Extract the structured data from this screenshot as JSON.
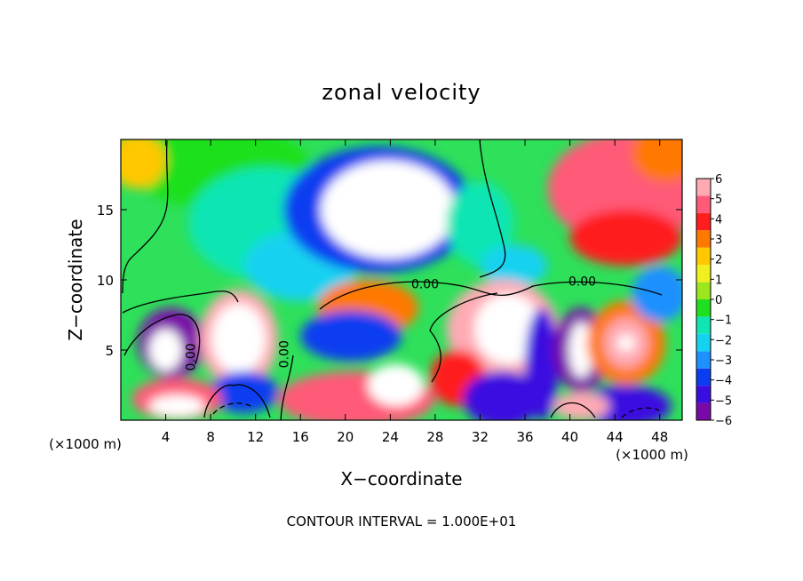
{
  "chart_data": {
    "type": "heatmap",
    "title": "zonal velocity",
    "xlabel": "X−coordinate",
    "ylabel": "Z−coordinate",
    "x_unit_left": "(×1000 m)",
    "x_unit_right": "(×1000 m)",
    "footer": "CONTOUR INTERVAL = 1.000E+01",
    "xlim": [
      0,
      50
    ],
    "ylim": [
      0,
      20
    ],
    "x_ticks": [
      4,
      8,
      12,
      16,
      20,
      24,
      28,
      32,
      36,
      40,
      44,
      48
    ],
    "y_ticks": [
      5,
      10,
      15
    ],
    "colorbar": {
      "range": [
        -6,
        6
      ],
      "ticks": [
        6,
        5,
        4,
        3,
        2,
        1,
        0,
        -1,
        -2,
        -3,
        -4,
        -5,
        -6
      ],
      "tick_labels": [
        "6",
        "5",
        "4",
        "3",
        "2",
        "1",
        "0",
        "−1",
        "−2",
        "−3",
        "−4",
        "−5",
        "−6"
      ],
      "colors": [
        "#7a0aa8",
        "#3a0ee0",
        "#0a3cf0",
        "#1e90ff",
        "#14d2f0",
        "#10e6b4",
        "#1ee01e",
        "#9be61e",
        "#f0f01e",
        "#ffc800",
        "#ff7800",
        "#ff1e1e",
        "#ff5a78",
        "#ffaab4"
      ]
    },
    "contour_labels": [
      {
        "text": "0.00",
        "x": 27.1,
        "z": 9.4
      },
      {
        "text": "0.00",
        "x": 41.1,
        "z": 9.6
      },
      {
        "text": "0.00",
        "x": 6.6,
        "z": 4.5
      },
      {
        "text": "0.00",
        "x": 14.9,
        "z": 4.7
      }
    ],
    "field_blobs": [
      {
        "x": 9,
        "z": 18,
        "rx": 8,
        "rz": 3,
        "value": -0.4
      },
      {
        "x": 13,
        "z": 14,
        "rx": 7,
        "rz": 4,
        "value": -1.6
      },
      {
        "x": 16,
        "z": 11,
        "rx": 5,
        "rz": 2.5,
        "value": -2.5
      },
      {
        "x": 23,
        "z": 15,
        "rx": 8.5,
        "rz": 4.5,
        "value": -4.2
      },
      {
        "x": 23.8,
        "z": 15,
        "rx": 6,
        "rz": 3.5,
        "value": -8
      },
      {
        "x": 32,
        "z": 14,
        "rx": 3,
        "rz": 3,
        "value": -1.4
      },
      {
        "x": 35,
        "z": 11,
        "rx": 3,
        "rz": 1.5,
        "value": -2.2
      },
      {
        "x": 45,
        "z": 16.5,
        "rx": 7,
        "rz": 4,
        "value": 4.6
      },
      {
        "x": 45,
        "z": 13,
        "rx": 5,
        "rz": 2,
        "value": 3.6
      },
      {
        "x": 48.5,
        "z": 19,
        "rx": 3,
        "rz": 2,
        "value": 3.2
      },
      {
        "x": 1.5,
        "z": 18.5,
        "rx": 2.5,
        "rz": 2,
        "value": 2.2
      },
      {
        "x": 22,
        "z": 8,
        "rx": 4.5,
        "rz": 2,
        "value": 3.2
      },
      {
        "x": 20.5,
        "z": 6,
        "rx": 4.5,
        "rz": 1.8,
        "value": -3.5
      },
      {
        "x": 4.5,
        "z": 5.5,
        "rx": 3,
        "rz": 2.5,
        "value": -5.5
      },
      {
        "x": 4,
        "z": 5,
        "rx": 1.5,
        "rz": 1.5,
        "value": -8
      },
      {
        "x": 10.5,
        "z": 5.8,
        "rx": 3.5,
        "rz": 3.5,
        "value": 6
      },
      {
        "x": 10.5,
        "z": 5.8,
        "rx": 2.4,
        "rz": 2.5,
        "value": 8
      },
      {
        "x": 11,
        "z": 2,
        "rx": 3,
        "rz": 1.5,
        "value": -3.5
      },
      {
        "x": 5,
        "z": 1.5,
        "rx": 4,
        "rz": 1.5,
        "value": 5
      },
      {
        "x": 5,
        "z": 1,
        "rx": 2.5,
        "rz": 0.8,
        "value": 8
      },
      {
        "x": 21,
        "z": 1.5,
        "rx": 7,
        "rz": 2,
        "value": 5
      },
      {
        "x": 24.5,
        "z": 2.5,
        "rx": 2.5,
        "rz": 1.5,
        "value": 8
      },
      {
        "x": 34,
        "z": 6.5,
        "rx": 5,
        "rz": 3.5,
        "value": 6
      },
      {
        "x": 34.5,
        "z": 6.5,
        "rx": 3,
        "rz": 2.5,
        "value": 8
      },
      {
        "x": 30,
        "z": 3,
        "rx": 2.5,
        "rz": 2,
        "value": 4
      },
      {
        "x": 34,
        "z": 1.5,
        "rx": 3.5,
        "rz": 2,
        "value": -5
      },
      {
        "x": 37.5,
        "z": 4,
        "rx": 1.5,
        "rz": 4,
        "value": -5
      },
      {
        "x": 41,
        "z": 5,
        "rx": 2.5,
        "rz": 3,
        "value": -6
      },
      {
        "x": 41,
        "z": 5,
        "rx": 1.1,
        "rz": 2,
        "value": -8
      },
      {
        "x": 45,
        "z": 5.5,
        "rx": 3.5,
        "rz": 3,
        "value": 3
      },
      {
        "x": 45,
        "z": 5.5,
        "rx": 2,
        "rz": 1.8,
        "value": 5.5
      },
      {
        "x": 45,
        "z": 5.5,
        "rx": 0.8,
        "rz": 0.6,
        "value": 8
      },
      {
        "x": 45,
        "z": 1,
        "rx": 4,
        "rz": 1.5,
        "value": -5
      },
      {
        "x": 41,
        "z": 1,
        "rx": 2.5,
        "rz": 1,
        "value": 6
      },
      {
        "x": 48,
        "z": 9,
        "rx": 2.5,
        "rz": 2,
        "value": -3
      }
    ]
  }
}
